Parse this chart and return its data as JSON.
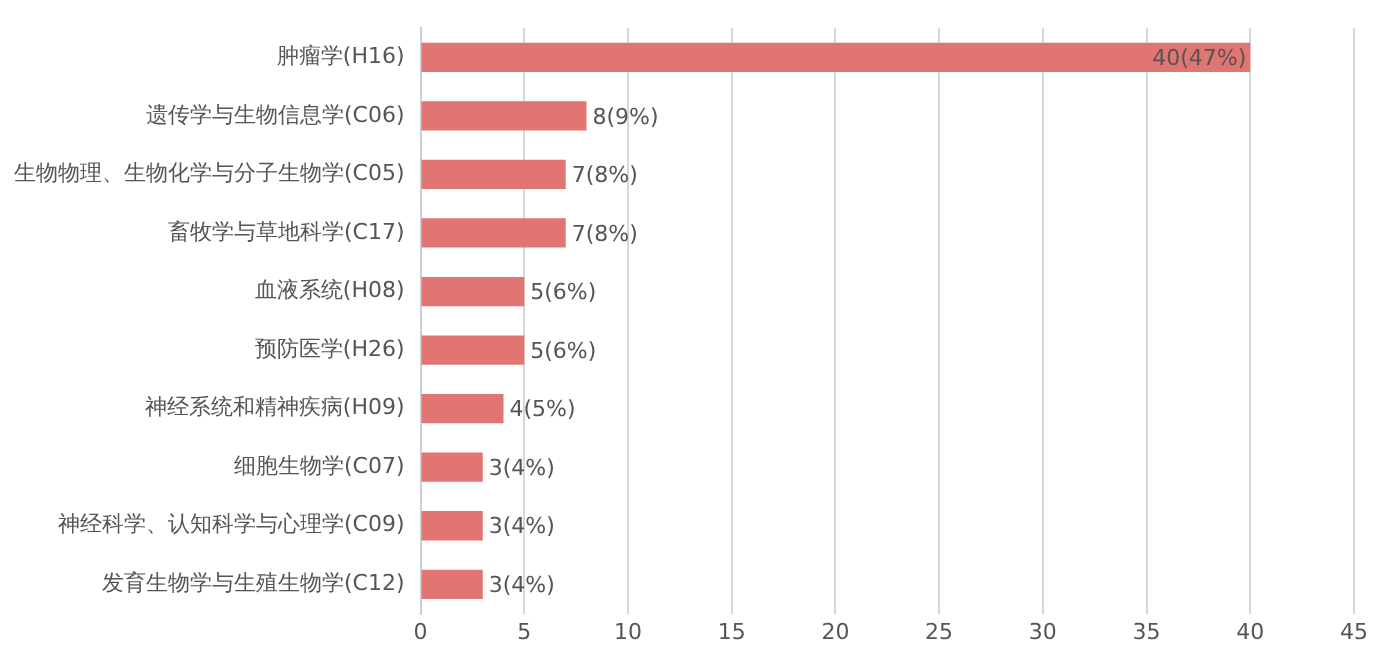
{
  "chart_data": {
    "type": "bar",
    "orientation": "horizontal",
    "categories": [
      "肿瘤学(H16)",
      "遗传学与生物信息学(C06)",
      "生物物理、生物化学与分子生物学(C05)",
      "畜牧学与草地科学(C17)",
      "血液系统(H08)",
      "预防医学(H26)",
      "神经系统和精神疾病(H09)",
      "细胞生物学(C07)",
      "神经科学、认知科学与心理学(C09)",
      "发育生物学与生殖生物学(C12)"
    ],
    "values": [
      40,
      8,
      7,
      7,
      5,
      5,
      4,
      3,
      3,
      3
    ],
    "value_labels": [
      "40(47%)",
      "8(9%)",
      "7(8%)",
      "7(8%)",
      "5(6%)",
      "5(6%)",
      "4(5%)",
      "3(4%)",
      "3(4%)",
      "3(4%)"
    ],
    "color": "#e07572",
    "xlim": [
      0,
      45
    ],
    "xticks": [
      0,
      5,
      10,
      15,
      20,
      25,
      30,
      35,
      40,
      45
    ],
    "grid": "x",
    "legend": false
  }
}
